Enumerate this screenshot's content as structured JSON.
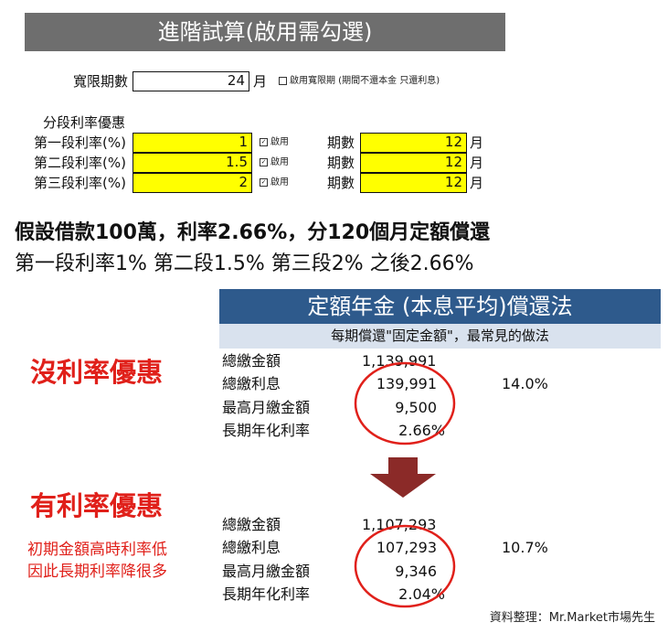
{
  "header": {
    "title": "進階試算(啟用需勾選)"
  },
  "grace": {
    "label": "寬限期數",
    "value": "24",
    "unit": "月",
    "option_label": "啟用寬限期 (期間不還本金 只還利息)",
    "option_checked": false
  },
  "tiers_section_label": "分段利率優惠",
  "tiers": [
    {
      "label": "第一段利率(%)",
      "rate": "1",
      "enabled_label": "啟用",
      "period_label": "期數",
      "periods": "12",
      "unit": "月"
    },
    {
      "label": "第二段利率(%)",
      "rate": "1.5",
      "enabled_label": "啟用",
      "period_label": "期數",
      "periods": "12",
      "unit": "月"
    },
    {
      "label": "第三段利率(%)",
      "rate": "2",
      "enabled_label": "啟用",
      "period_label": "期數",
      "periods": "12",
      "unit": "月"
    }
  ],
  "headline": {
    "line1": "假設借款100萬，利率2.66%，分120個月定額償還",
    "line2": "第一段利率1% 第二段1.5% 第三段2% 之後2.66%"
  },
  "method": {
    "title": "定額年金 (本息平均)償還法",
    "subtitle": "每期償還\"固定金額\"，最常見的做法"
  },
  "no_discount": {
    "heading": "沒利率優惠",
    "rows": [
      {
        "label": "總繳金額",
        "value": "1,139,991",
        "extra": ""
      },
      {
        "label": "總繳利息",
        "value": "139,991",
        "extra": "14.0%"
      },
      {
        "label": "最高月繳金額",
        "value": "9,500",
        "extra": ""
      },
      {
        "label": "長期年化利率",
        "value": "2.66%",
        "extra": ""
      }
    ]
  },
  "with_discount": {
    "heading": "有利率優惠",
    "note_line1": "初期金額高時利率低",
    "note_line2": "因此長期利率降很多",
    "rows": [
      {
        "label": "總繳金額",
        "value": "1,107,293",
        "extra": ""
      },
      {
        "label": "總繳利息",
        "value": "107,293",
        "extra": "10.7%"
      },
      {
        "label": "最高月繳金額",
        "value": "9,346",
        "extra": ""
      },
      {
        "label": "長期年化利率",
        "value": "2.04%",
        "extra": ""
      }
    ]
  },
  "credit": "資料整理：Mr.Market市場先生",
  "colors": {
    "title_bar": "#6e6e6e",
    "input_yellow": "#ffff00",
    "blue": "#2e5a8c",
    "accent_red": "#e0201a",
    "arrow": "#8b2a28"
  }
}
